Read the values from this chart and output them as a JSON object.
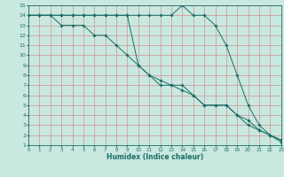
{
  "xlabel": "Humidex (Indice chaleur)",
  "bg_color": "#c8e8e0",
  "grid_color": "#d49090",
  "line_color": "#1a6e66",
  "xmin": 0,
  "xmax": 23,
  "ymin": 1,
  "ymax": 15,
  "series": [
    {
      "x": [
        0,
        1,
        2,
        3,
        4,
        5,
        6,
        7,
        8,
        9,
        10,
        11,
        12,
        13,
        14,
        15,
        16,
        17,
        18,
        19,
        20,
        21,
        22,
        23
      ],
      "y": [
        14,
        14,
        14,
        14,
        14,
        14,
        14,
        14,
        14,
        14,
        14,
        14,
        14,
        14,
        15,
        14,
        14,
        13,
        11,
        8,
        5,
        3,
        2,
        1.3
      ]
    },
    {
      "x": [
        0,
        1,
        2,
        3,
        4,
        5,
        6,
        7,
        8,
        9,
        10,
        11,
        12,
        13,
        14,
        15,
        16,
        17,
        18,
        19,
        20,
        21,
        22,
        23
      ],
      "y": [
        14,
        14,
        14,
        14,
        14,
        14,
        14,
        14,
        14,
        14,
        9,
        8,
        7,
        7,
        7,
        6,
        5,
        5,
        5,
        4,
        3,
        2.5,
        2,
        1.5
      ]
    },
    {
      "x": [
        0,
        1,
        2,
        3,
        4,
        5,
        6,
        7,
        8,
        9,
        10,
        11,
        12,
        13,
        14,
        15,
        16,
        17,
        18,
        19,
        20,
        21,
        22,
        23
      ],
      "y": [
        14,
        14,
        14,
        13,
        13,
        13,
        12,
        12,
        11,
        10,
        9,
        8,
        7.5,
        7,
        6.5,
        6,
        5,
        5,
        5,
        4,
        3.5,
        2.5,
        2,
        1.5
      ]
    }
  ]
}
